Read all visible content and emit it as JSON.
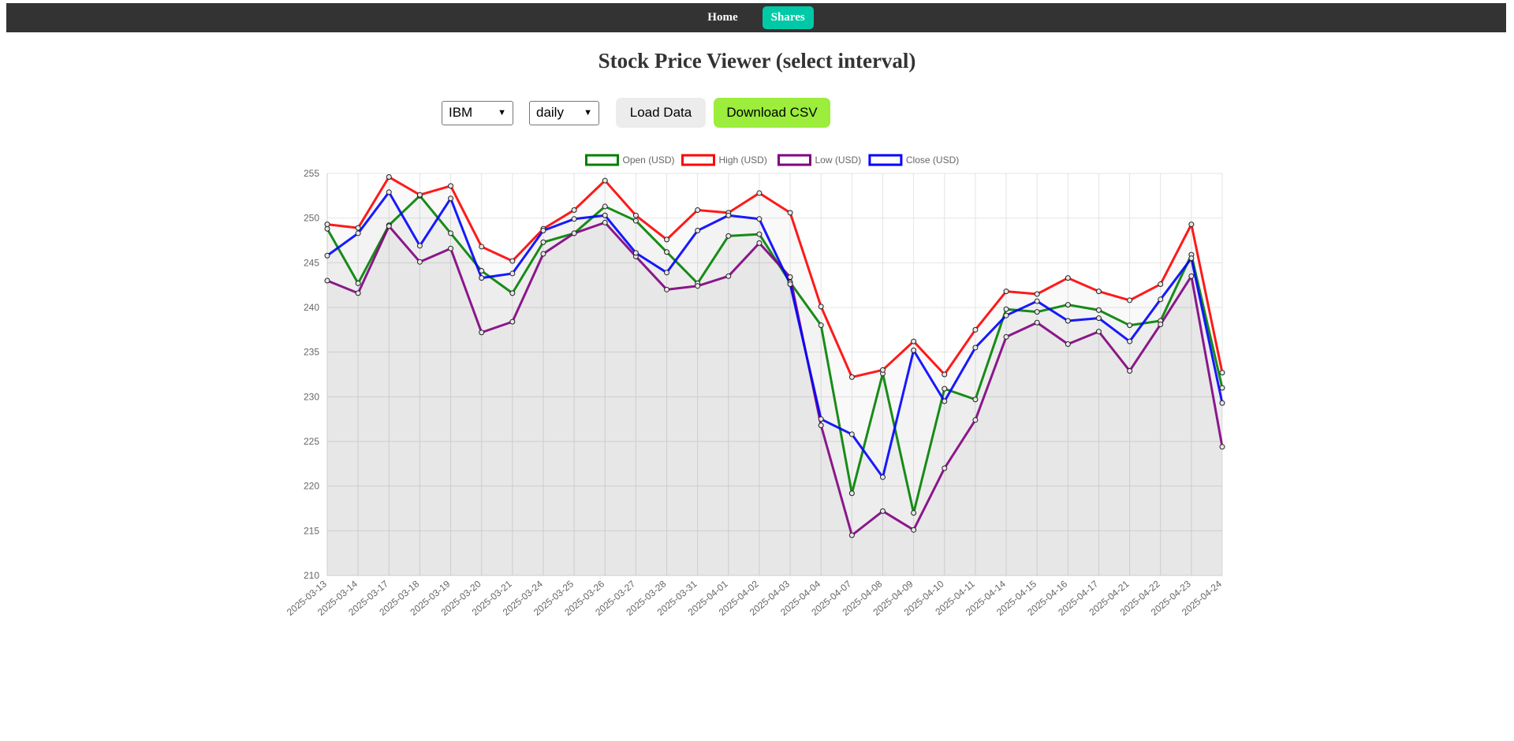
{
  "nav": {
    "home_label": "Home",
    "shares_label": "Shares"
  },
  "page": {
    "title": "Stock Price Viewer (select interval)"
  },
  "controls": {
    "symbol_selected": "IBM",
    "interval_selected": "daily",
    "load_label": "Load Data",
    "download_label": "Download CSV"
  },
  "colors": {
    "nav_bg": "#333333",
    "active_tab": "#00c9a7",
    "download_button": "#9ced3c"
  },
  "chart_data": {
    "type": "line",
    "title": "",
    "xlabel": "",
    "ylabel": "",
    "ylim": [
      210,
      255
    ],
    "yticks": [
      210,
      215,
      220,
      225,
      230,
      235,
      240,
      245,
      250,
      255
    ],
    "grid": true,
    "legend_position": "top",
    "categories": [
      "2025-03-13",
      "2025-03-14",
      "2025-03-17",
      "2025-03-18",
      "2025-03-19",
      "2025-03-20",
      "2025-03-21",
      "2025-03-24",
      "2025-03-25",
      "2025-03-26",
      "2025-03-27",
      "2025-03-28",
      "2025-03-31",
      "2025-04-01",
      "2025-04-02",
      "2025-04-03",
      "2025-04-04",
      "2025-04-07",
      "2025-04-08",
      "2025-04-09",
      "2025-04-10",
      "2025-04-11",
      "2025-04-14",
      "2025-04-15",
      "2025-04-16",
      "2025-04-17",
      "2025-04-21",
      "2025-04-22",
      "2025-04-23",
      "2025-04-24"
    ],
    "series": [
      {
        "name": "Open (USD)",
        "color": "#008000",
        "values": [
          248.8,
          242.7,
          249.2,
          252.5,
          248.3,
          244.1,
          241.6,
          247.3,
          248.3,
          251.3,
          249.7,
          246.2,
          242.7,
          248.0,
          248.2,
          242.8,
          238.0,
          219.2,
          232.6,
          217.0,
          230.9,
          229.7,
          239.8,
          239.5,
          240.3,
          239.7,
          238.0,
          238.5,
          245.9,
          231.0
        ]
      },
      {
        "name": "High (USD)",
        "color": "#ff0000",
        "values": [
          249.3,
          248.9,
          254.6,
          252.6,
          253.6,
          246.8,
          245.2,
          248.8,
          250.9,
          254.2,
          250.3,
          247.6,
          250.9,
          250.6,
          252.8,
          250.6,
          240.1,
          232.2,
          233.0,
          236.2,
          232.5,
          237.5,
          241.8,
          241.5,
          243.3,
          241.8,
          240.8,
          242.6,
          249.3,
          232.7
        ]
      },
      {
        "name": "Low (USD)",
        "color": "#800080",
        "values": [
          243.0,
          241.6,
          249.1,
          245.1,
          246.6,
          237.2,
          238.4,
          246.0,
          248.3,
          249.5,
          245.7,
          242.0,
          242.4,
          243.5,
          247.2,
          243.4,
          226.8,
          214.5,
          217.2,
          215.1,
          222.0,
          227.4,
          236.7,
          238.3,
          235.9,
          237.3,
          232.9,
          238.1,
          243.5,
          224.4
        ]
      },
      {
        "name": "Close (USD)",
        "color": "#0000ff",
        "values": [
          245.8,
          248.3,
          252.9,
          246.9,
          252.2,
          243.3,
          243.8,
          248.6,
          249.9,
          250.3,
          246.1,
          243.9,
          248.6,
          250.3,
          249.9,
          242.6,
          227.5,
          225.8,
          221.0,
          235.2,
          229.5,
          235.5,
          239.1,
          240.7,
          238.5,
          238.8,
          236.2,
          240.9,
          245.5,
          229.3
        ]
      }
    ]
  }
}
